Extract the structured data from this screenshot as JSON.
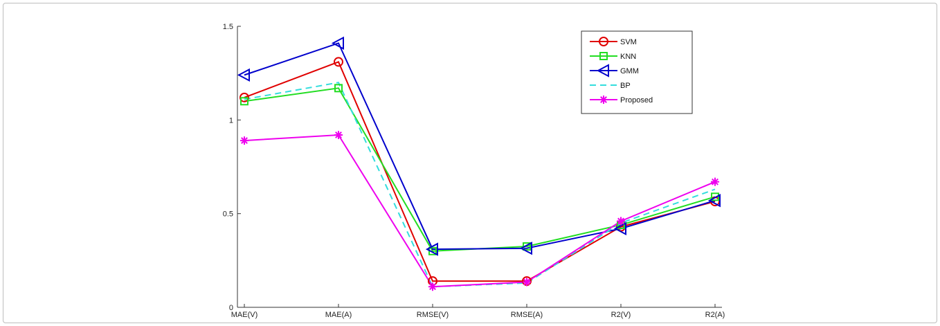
{
  "chart_data": {
    "type": "line",
    "categories": [
      "MAE(V)",
      "MAE(A)",
      "RMSE(V)",
      "RMSE(A)",
      "R2(V)",
      "R2(A)"
    ],
    "ylim": [
      0,
      1.5
    ],
    "yticks": [
      "0",
      "0.5",
      "1",
      "1.5"
    ],
    "title": "",
    "xlabel": "",
    "ylabel": "",
    "grid": false,
    "legend_position": "top-right",
    "series": [
      {
        "name": "SVM",
        "values": [
          1.12,
          1.31,
          0.14,
          0.14,
          0.43,
          0.565
        ],
        "color": "#e00000",
        "marker": "circle",
        "dash": "solid"
      },
      {
        "name": "KNN",
        "values": [
          1.1,
          1.17,
          0.3,
          0.325,
          0.44,
          0.59
        ],
        "color": "#22dd22",
        "marker": "square",
        "dash": "solid"
      },
      {
        "name": "GMM",
        "values": [
          1.24,
          1.41,
          0.31,
          0.315,
          0.42,
          0.57
        ],
        "color": "#0000cc",
        "marker": "triangle-left",
        "dash": "solid"
      },
      {
        "name": "BP",
        "values": [
          1.11,
          1.2,
          0.11,
          0.13,
          0.45,
          0.63
        ],
        "color": "#33dddd",
        "marker": "none",
        "dash": "dashed"
      },
      {
        "name": "Proposed",
        "values": [
          0.89,
          0.92,
          0.11,
          0.135,
          0.46,
          0.67
        ],
        "color": "#ee00ee",
        "marker": "asterisk",
        "dash": "solid"
      }
    ]
  }
}
